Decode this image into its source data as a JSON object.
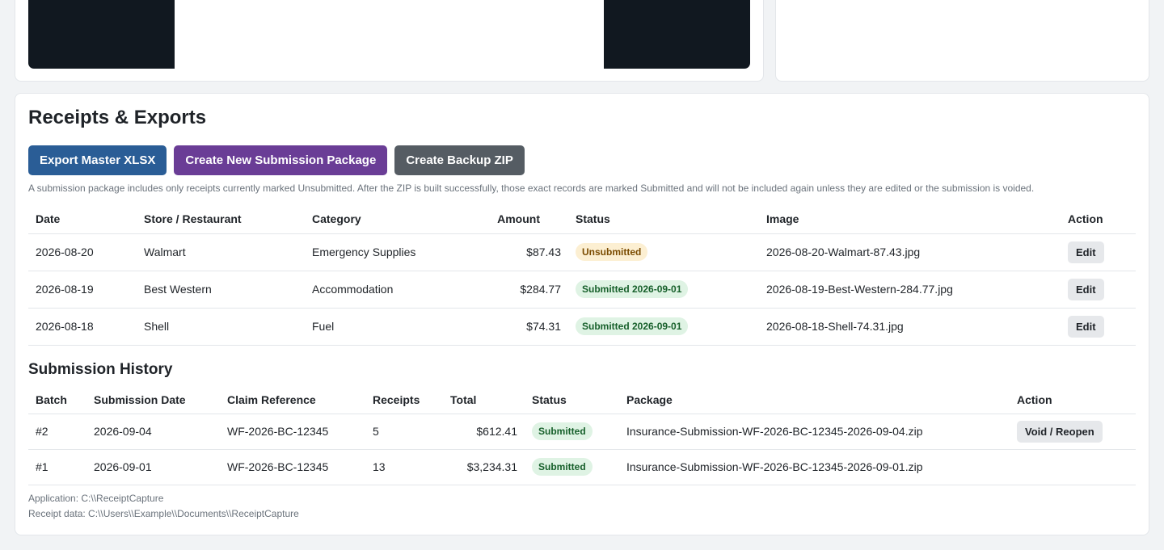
{
  "receipts": {
    "title": "Receipts & Exports",
    "buttons": {
      "export_master": "Export Master XLSX",
      "create_submission": "Create New Submission Package",
      "create_backup": "Create Backup ZIP"
    },
    "hint": "A submission package includes only receipts currently marked Unsubmitted. After the ZIP is built successfully, those exact records are marked Submitted and will not be included again unless they are edited or the submission is voided.",
    "columns": [
      "Date",
      "Store / Restaurant",
      "Category",
      "Amount",
      "Status",
      "Image",
      "Action"
    ],
    "rows": [
      {
        "date": "2026-08-20",
        "store": "Walmart",
        "category": "Emergency Supplies",
        "amount": "$87.43",
        "status": "Unsubmitted",
        "image": "2026-08-20-Walmart-87.43.jpg",
        "action": "Edit"
      },
      {
        "date": "2026-08-19",
        "store": "Best Western",
        "category": "Accommodation",
        "amount": "$284.77",
        "status": "Submitted 2026-09-01",
        "image": "2026-08-19-Best-Western-284.77.jpg",
        "action": "Edit"
      },
      {
        "date": "2026-08-18",
        "store": "Shell",
        "category": "Fuel",
        "amount": "$74.31",
        "status": "Submitted 2026-09-01",
        "image": "2026-08-18-Shell-74.31.jpg",
        "action": "Edit"
      }
    ]
  },
  "history": {
    "title": "Submission History",
    "columns": [
      "Batch",
      "Submission Date",
      "Claim Reference",
      "Receipts",
      "Total",
      "Status",
      "Package",
      "Action"
    ],
    "rows": [
      {
        "batch": "#2",
        "date": "2026-09-04",
        "claim": "WF-2026-BC-12345",
        "receipts": "5",
        "total": "$612.41",
        "status": "Submitted",
        "package": "Insurance-Submission-WF-2026-BC-12345-2026-09-04.zip",
        "action": "Void / Reopen"
      },
      {
        "batch": "#1",
        "date": "2026-09-01",
        "claim": "WF-2026-BC-12345",
        "receipts": "13",
        "total": "$3,234.31",
        "status": "Submitted",
        "package": "Insurance-Submission-WF-2026-BC-12345-2026-09-01.zip",
        "action": ""
      }
    ]
  },
  "footer": {
    "application": "Application: C:\\\\ReceiptCapture",
    "receipt_data": "Receipt data: C:\\\\Users\\\\Example\\\\Documents\\\\ReceiptCapture"
  },
  "colors": {
    "primary_blue": "#2a5d96",
    "purple": "#6a3d96",
    "gray": "#555c63",
    "unsubmitted_badge": "#fcefd2",
    "submitted_badge": "#dff3e4"
  }
}
